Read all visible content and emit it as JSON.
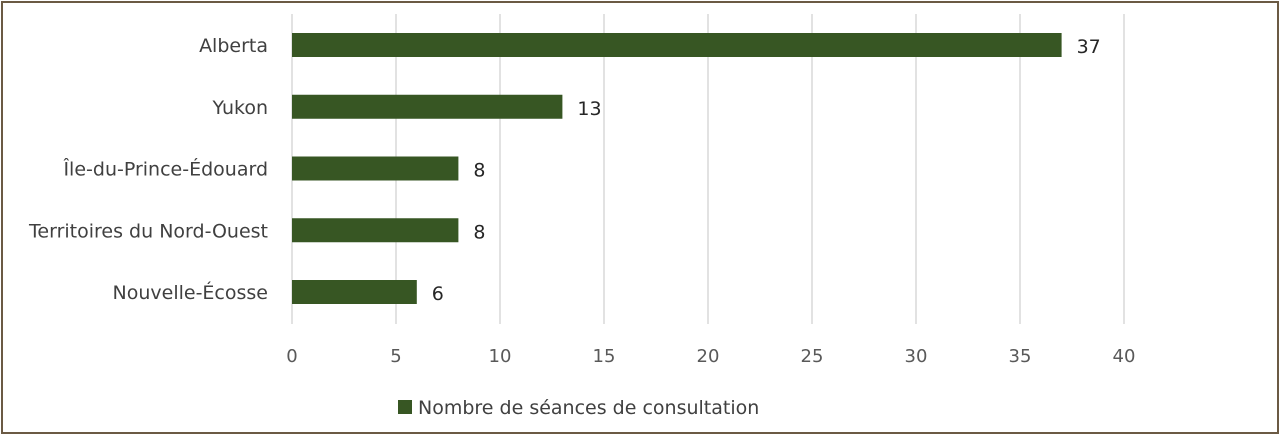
{
  "chart_data": {
    "type": "bar",
    "orientation": "horizontal",
    "categories": [
      "Alberta",
      "Yukon",
      "Île-du-Prince-Édouard",
      "Territoires du Nord-Ouest",
      "Nouvelle-Écosse"
    ],
    "series": [
      {
        "name": "Nombre de séances de consultation",
        "values": [
          37,
          13,
          8,
          8,
          6
        ],
        "color": "#375623"
      }
    ],
    "xlim": [
      0,
      40
    ],
    "xticks": [
      0,
      5,
      10,
      15,
      20,
      25,
      30,
      35,
      40
    ],
    "grid": true,
    "legend": "bottom",
    "data_labels": true,
    "title": "",
    "xlabel": "",
    "ylabel": ""
  },
  "colors": {
    "bar": "#375623",
    "grid": "#d9d9d9",
    "border": "#6b5a44"
  }
}
